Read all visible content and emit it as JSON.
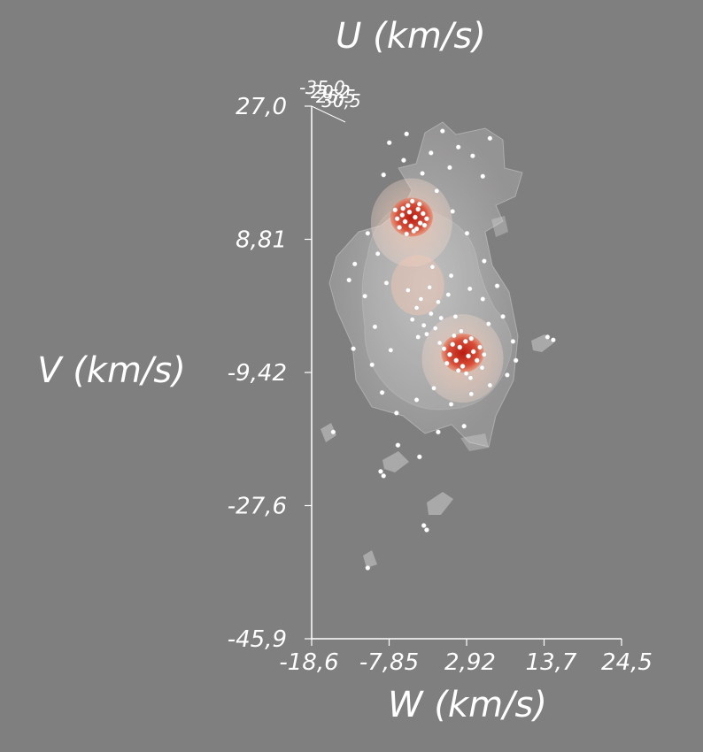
{
  "chart_data": {
    "type": "scatter",
    "render": "3d-volume-isosurface",
    "xlabel": "W (km/s)",
    "ylabel": "V (km/s)",
    "zlabel": "U (km/s)",
    "x_ticks": [
      "-18,6",
      "-7,85",
      "2,92",
      "13,7",
      "24,5"
    ],
    "y_ticks": [
      "27,0",
      "8,81",
      "-9,42",
      "-27,6",
      "-45,9"
    ],
    "z_ticks_overlapped": [
      "-35,0",
      "-20,2",
      "-25,5",
      "-30,5"
    ],
    "xlim": [
      -18.6,
      24.5
    ],
    "ylim": [
      -45.9,
      27.0
    ],
    "grid": false,
    "colors": {
      "background": "#7f7f7f",
      "outer_surface": "#e8e4e4",
      "mid_surface": "#f2b79c",
      "core_surface": "#d0301e",
      "points": "#ffffff",
      "axes": "#ffffff"
    },
    "density_peaks": [
      {
        "w": -4.7,
        "v": 11.8
      },
      {
        "w": 2.4,
        "v": -6.8
      }
    ],
    "points": [
      [
        -5.0,
        12.5
      ],
      [
        -4.2,
        11.8
      ],
      [
        -5.6,
        11.2
      ],
      [
        -3.8,
        12.9
      ],
      [
        -4.8,
        10.6
      ],
      [
        -6.0,
        12.1
      ],
      [
        -3.5,
        11.0
      ],
      [
        -5.2,
        13.4
      ],
      [
        -4.4,
        9.9
      ],
      [
        -6.4,
        10.4
      ],
      [
        -3.1,
        12.3
      ],
      [
        -5.9,
        13.0
      ],
      [
        -4.0,
        10.2
      ],
      [
        -6.7,
        11.6
      ],
      [
        -2.9,
        10.7
      ],
      [
        -4.6,
        14.0
      ],
      [
        -5.4,
        9.5
      ],
      [
        -3.6,
        13.6
      ],
      [
        -7.0,
        12.8
      ],
      [
        -2.6,
        11.6
      ],
      [
        2.0,
        -6.0
      ],
      [
        3.2,
        -7.2
      ],
      [
        1.5,
        -7.8
      ],
      [
        2.8,
        -5.2
      ],
      [
        3.9,
        -6.6
      ],
      [
        1.0,
        -5.6
      ],
      [
        2.4,
        -8.6
      ],
      [
        4.4,
        -7.8
      ],
      [
        0.6,
        -7.0
      ],
      [
        3.6,
        -4.8
      ],
      [
        1.8,
        -9.2
      ],
      [
        4.8,
        -6.0
      ],
      [
        0.2,
        -8.2
      ],
      [
        2.9,
        -9.6
      ],
      [
        5.1,
        -8.8
      ],
      [
        -0.2,
        -6.2
      ],
      [
        3.5,
        -10.2
      ],
      [
        1.2,
        -4.4
      ],
      [
        5.4,
        -7.0
      ],
      [
        2.2,
        -3.8
      ],
      [
        -3.0,
        -3.0
      ],
      [
        -2.0,
        -1.4
      ],
      [
        -4.0,
        -0.6
      ],
      [
        -1.4,
        -3.4
      ],
      [
        -3.4,
        0.6
      ],
      [
        -0.6,
        -2.0
      ],
      [
        -2.6,
        -4.2
      ],
      [
        -4.6,
        -2.2
      ],
      [
        -1.0,
        0.2
      ],
      [
        -3.8,
        -4.6
      ],
      [
        0.4,
        1.2
      ],
      [
        -0.8,
        -5.4
      ],
      [
        1.4,
        -1.8
      ],
      [
        -2.2,
        2.2
      ],
      [
        -5.2,
        1.8
      ],
      [
        0.8,
        3.8
      ],
      [
        -1.8,
        5.0
      ],
      [
        3.4,
        2.0
      ],
      [
        5.2,
        0.6
      ],
      [
        6.0,
        -2.8
      ],
      [
        -9.4,
        6.8
      ],
      [
        -12.6,
        5.4
      ],
      [
        -10.8,
        9.6
      ],
      [
        -8.2,
        2.8
      ],
      [
        -11.2,
        1.0
      ],
      [
        -9.8,
        -3.2
      ],
      [
        -7.6,
        -6.4
      ],
      [
        -10.2,
        -8.4
      ],
      [
        -8.8,
        -12.2
      ],
      [
        -6.8,
        -15.0
      ],
      [
        -4.0,
        -13.2
      ],
      [
        -1.6,
        -11.6
      ],
      [
        0.8,
        -13.8
      ],
      [
        3.6,
        -12.4
      ],
      [
        6.2,
        -11.2
      ],
      [
        8.6,
        -9.8
      ],
      [
        9.4,
        -5.2
      ],
      [
        8.0,
        -1.8
      ],
      [
        7.2,
        2.4
      ],
      [
        5.4,
        5.8
      ],
      [
        3.0,
        9.6
      ],
      [
        1.0,
        12.6
      ],
      [
        -1.2,
        15.4
      ],
      [
        -3.2,
        17.8
      ],
      [
        -5.8,
        19.6
      ],
      [
        -8.6,
        17.6
      ],
      [
        -2.0,
        20.6
      ],
      [
        0.6,
        18.6
      ],
      [
        -0.4,
        23.6
      ],
      [
        1.8,
        21.4
      ],
      [
        3.8,
        20.2
      ],
      [
        -5.4,
        23.2
      ],
      [
        -7.8,
        22.0
      ],
      [
        6.2,
        22.6
      ],
      [
        5.2,
        17.4
      ],
      [
        -6.6,
        -19.4
      ],
      [
        -1.0,
        -17.6
      ],
      [
        2.6,
        -16.8
      ],
      [
        -3.6,
        -21.0
      ],
      [
        -13.4,
        3.2
      ],
      [
        14.2,
        -4.6
      ],
      [
        15.0,
        -5.0
      ],
      [
        -15.6,
        -17.6
      ],
      [
        -9.0,
        -23.0
      ],
      [
        -8.6,
        -23.6
      ],
      [
        -3.0,
        -30.4
      ],
      [
        -2.6,
        -31.0
      ],
      [
        -10.8,
        -36.2
      ],
      [
        9.8,
        -7.8
      ],
      [
        -12.8,
        -6.2
      ]
    ]
  }
}
